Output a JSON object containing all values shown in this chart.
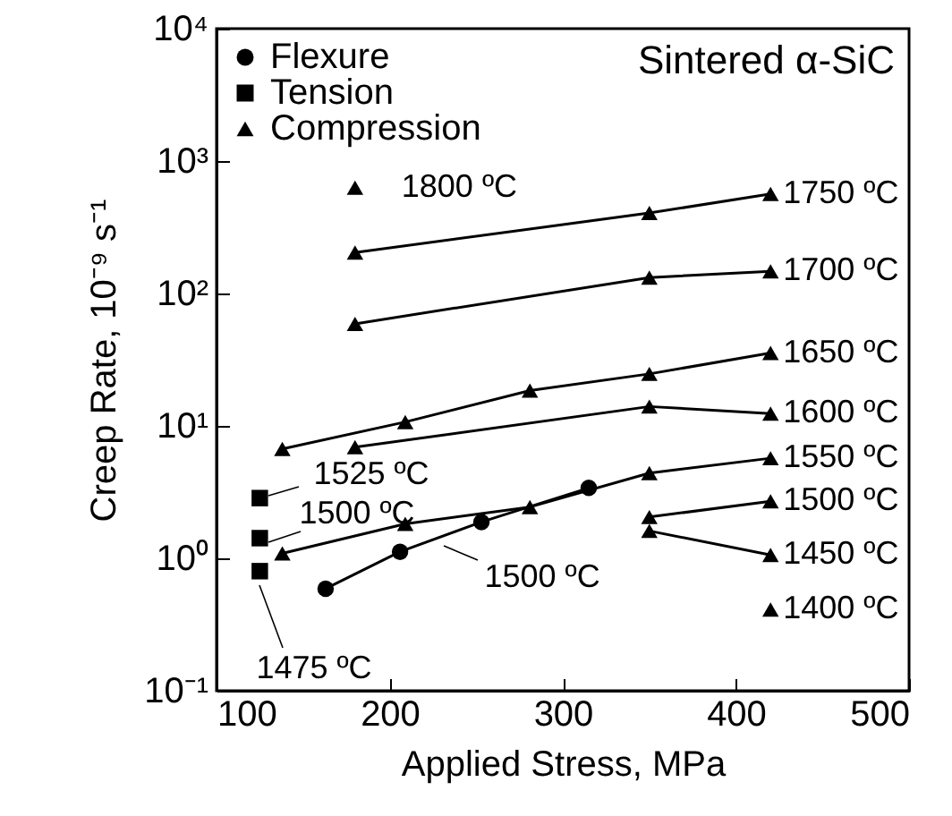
{
  "chart_data": {
    "type": "line",
    "xlabel": "Applied Stress, MPa",
    "ylabel": "Creep Rate, 10⁻⁹ s⁻¹",
    "log": "y",
    "grid": false,
    "legend": "top left",
    "xlim": [
      100,
      500
    ],
    "xticks": [
      100,
      200,
      300,
      400,
      500
    ],
    "ylim": [
      0.1,
      10000
    ],
    "yticks": [
      {
        "value": 0.1,
        "label": "10⁻¹"
      },
      {
        "value": 1,
        "label": "10⁰"
      },
      {
        "value": 10,
        "label": "10¹"
      },
      {
        "value": 100,
        "label": "10²"
      },
      {
        "value": 1000,
        "label": "10³"
      },
      {
        "value": 10000,
        "label": "10⁴"
      }
    ],
    "series": [
      {
        "name": "Flexure",
        "marker": "circle",
        "color": "#000000",
        "x": [
          163,
          206,
          253,
          315
        ],
        "values": [
          0.59,
          1.12,
          1.88,
          3.4
        ]
      },
      {
        "name": "Tension",
        "type": "scatter",
        "marker": "square",
        "color": "#000000",
        "x": [
          125,
          125,
          125
        ],
        "values": [
          2.85,
          1.42,
          0.8
        ]
      },
      {
        "name": "Compression",
        "type": "scatter",
        "marker": "triangle",
        "color": "#000000",
        "x": [
          180
        ],
        "values": [
          630
        ]
      },
      {
        "marker": "triangle",
        "color": "#000000",
        "x": [
          180,
          350,
          420
        ],
        "values": [
          204,
          405,
          565
        ]
      },
      {
        "marker": "triangle",
        "color": "#000000",
        "x": [
          180,
          350,
          420
        ],
        "values": [
          59,
          132,
          147
        ]
      },
      {
        "marker": "triangle",
        "color": "#000000",
        "x": [
          138,
          209,
          281,
          350,
          420
        ],
        "values": [
          6.7,
          10.7,
          18.5,
          24.7,
          35.5
        ]
      },
      {
        "marker": "triangle",
        "color": "#000000",
        "x": [
          180,
          350,
          420
        ],
        "values": [
          6.9,
          14,
          12.4
        ]
      },
      {
        "marker": "triangle",
        "color": "#000000",
        "x": [
          138,
          209,
          281,
          350,
          420
        ],
        "values": [
          1.09,
          1.82,
          2.44,
          4.4,
          5.7
        ]
      },
      {
        "marker": "triangle",
        "color": "#000000",
        "x": [
          350,
          420
        ],
        "values": [
          2.05,
          2.7
        ]
      },
      {
        "marker": "triangle",
        "color": "#000000",
        "x": [
          350,
          420
        ],
        "values": [
          1.61,
          1.06
        ]
      },
      {
        "type": "scatter",
        "marker": "triangle",
        "color": "#000000",
        "x": [
          420
        ],
        "values": [
          0.41
        ]
      }
    ],
    "annotations": [
      "Sintered α-SiC",
      {
        "text": "1750 ºC",
        "x": 420,
        "y": 565
      },
      {
        "text": "1700 ºC",
        "x": 420,
        "y": 147
      },
      {
        "text": "1650 ºC",
        "x": 420,
        "y": 35.5
      },
      {
        "text": "1600 ºC",
        "x": 420,
        "y": 12.4
      },
      {
        "text": "1550 ºC",
        "x": 420,
        "y": 5.7
      },
      {
        "text": "1500 ºC",
        "x": 420,
        "y": 2.7
      },
      {
        "text": "1450 ºC",
        "x": 420,
        "y": 1.06
      },
      {
        "text": "1400 ºC",
        "x": 420,
        "y": 0.41
      },
      {
        "text": "1800 ºC",
        "x": 180,
        "y": 630
      },
      {
        "text": "1525 ºC",
        "x": 125,
        "y": 2.85
      },
      {
        "text": "1500 ºC",
        "x": 125,
        "y": 1.42
      },
      {
        "text": "1500 ºC",
        "x": 231,
        "y": 1.45
      },
      {
        "text": "1475 ºC",
        "x": 125,
        "y": 0.8
      }
    ]
  }
}
